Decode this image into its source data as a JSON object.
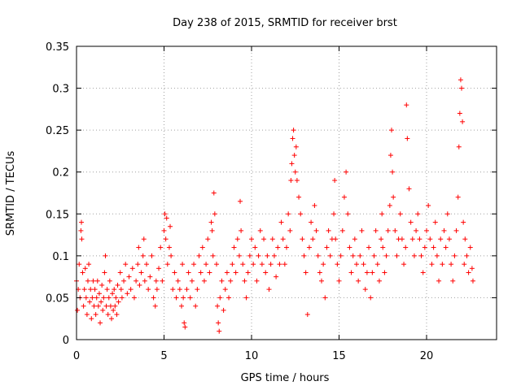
{
  "chart_data": {
    "type": "scatter",
    "title": "Day 238 of 2015, SRMTID for receiver brst",
    "xlabel": "GPS time / hours",
    "ylabel": "SRMTID / TECUs",
    "xlim": [
      0,
      24
    ],
    "ylim": [
      0,
      0.35
    ],
    "x_ticks": [
      0,
      5,
      10,
      15,
      20
    ],
    "x_tick_labels": [
      "0",
      "5",
      "10",
      "15",
      "20"
    ],
    "y_ticks": [
      0,
      0.05,
      0.1,
      0.15,
      0.2,
      0.25,
      0.3,
      0.35
    ],
    "y_tick_labels": [
      "0",
      "0.05",
      "0.1",
      "0.15",
      "0.2",
      "0.25",
      "0.3",
      "0.35"
    ],
    "grid": true,
    "marker": "+",
    "color": "#ff0000",
    "series": [
      {
        "name": "SRMTID",
        "points": [
          [
            0.0,
            0.07
          ],
          [
            0.05,
            0.035
          ],
          [
            0.1,
            0.06
          ],
          [
            0.15,
            0.09
          ],
          [
            0.2,
            0.05
          ],
          [
            0.25,
            0.13
          ],
          [
            0.28,
            0.14
          ],
          [
            0.3,
            0.12
          ],
          [
            0.35,
            0.08
          ],
          [
            0.4,
            0.04
          ],
          [
            0.45,
            0.06
          ],
          [
            0.5,
            0.085
          ],
          [
            0.55,
            0.05
          ],
          [
            0.6,
            0.03
          ],
          [
            0.65,
            0.07
          ],
          [
            0.7,
            0.09
          ],
          [
            0.75,
            0.045
          ],
          [
            0.8,
            0.06
          ],
          [
            0.85,
            0.025
          ],
          [
            0.9,
            0.05
          ],
          [
            0.95,
            0.07
          ],
          [
            1.0,
            0.04
          ],
          [
            1.05,
            0.06
          ],
          [
            1.1,
            0.03
          ],
          [
            1.15,
            0.05
          ],
          [
            1.2,
            0.07
          ],
          [
            1.25,
            0.04
          ],
          [
            1.3,
            0.055
          ],
          [
            1.35,
            0.02
          ],
          [
            1.4,
            0.045
          ],
          [
            1.45,
            0.065
          ],
          [
            1.5,
            0.035
          ],
          [
            1.55,
            0.05
          ],
          [
            1.6,
            0.08
          ],
          [
            1.65,
            0.1
          ],
          [
            1.7,
            0.04
          ],
          [
            1.75,
            0.06
          ],
          [
            1.8,
            0.03
          ],
          [
            1.85,
            0.05
          ],
          [
            1.9,
            0.07
          ],
          [
            1.95,
            0.04
          ],
          [
            2.0,
            0.025
          ],
          [
            2.05,
            0.055
          ],
          [
            2.1,
            0.035
          ],
          [
            2.15,
            0.06
          ],
          [
            2.2,
            0.04
          ],
          [
            2.25,
            0.05
          ],
          [
            2.3,
            0.03
          ],
          [
            2.35,
            0.065
          ],
          [
            2.4,
            0.045
          ],
          [
            2.5,
            0.08
          ],
          [
            2.55,
            0.06
          ],
          [
            2.6,
            0.05
          ],
          [
            2.7,
            0.07
          ],
          [
            2.8,
            0.09
          ],
          [
            2.9,
            0.055
          ],
          [
            3.0,
            0.075
          ],
          [
            3.1,
            0.06
          ],
          [
            3.2,
            0.085
          ],
          [
            3.3,
            0.05
          ],
          [
            3.4,
            0.07
          ],
          [
            3.5,
            0.09
          ],
          [
            3.55,
            0.11
          ],
          [
            3.6,
            0.065
          ],
          [
            3.7,
            0.08
          ],
          [
            3.8,
            0.1
          ],
          [
            3.85,
            0.12
          ],
          [
            3.9,
            0.07
          ],
          [
            4.0,
            0.09
          ],
          [
            4.1,
            0.06
          ],
          [
            4.2,
            0.075
          ],
          [
            4.3,
            0.1
          ],
          [
            4.4,
            0.05
          ],
          [
            4.5,
            0.04
          ],
          [
            4.55,
            0.07
          ],
          [
            4.6,
            0.06
          ],
          [
            4.7,
            0.085
          ],
          [
            4.8,
            0.11
          ],
          [
            4.9,
            0.07
          ],
          [
            5.0,
            0.13
          ],
          [
            5.05,
            0.15
          ],
          [
            5.1,
            0.12
          ],
          [
            5.15,
            0.145
          ],
          [
            5.2,
            0.09
          ],
          [
            5.3,
            0.11
          ],
          [
            5.35,
            0.135
          ],
          [
            5.4,
            0.1
          ],
          [
            5.5,
            0.06
          ],
          [
            5.6,
            0.08
          ],
          [
            5.7,
            0.05
          ],
          [
            5.8,
            0.07
          ],
          [
            5.9,
            0.06
          ],
          [
            6.0,
            0.04
          ],
          [
            6.05,
            0.09
          ],
          [
            6.1,
            0.05
          ],
          [
            6.15,
            0.02
          ],
          [
            6.2,
            0.015
          ],
          [
            6.3,
            0.06
          ],
          [
            6.4,
            0.08
          ],
          [
            6.5,
            0.05
          ],
          [
            6.6,
            0.07
          ],
          [
            6.7,
            0.09
          ],
          [
            6.8,
            0.04
          ],
          [
            6.9,
            0.06
          ],
          [
            7.0,
            0.1
          ],
          [
            7.1,
            0.08
          ],
          [
            7.2,
            0.11
          ],
          [
            7.3,
            0.07
          ],
          [
            7.4,
            0.09
          ],
          [
            7.5,
            0.12
          ],
          [
            7.6,
            0.08
          ],
          [
            7.7,
            0.14
          ],
          [
            7.75,
            0.13
          ],
          [
            7.8,
            0.1
          ],
          [
            7.85,
            0.175
          ],
          [
            7.9,
            0.15
          ],
          [
            8.0,
            0.09
          ],
          [
            8.05,
            0.04
          ],
          [
            8.1,
            0.02
          ],
          [
            8.15,
            0.01
          ],
          [
            8.2,
            0.05
          ],
          [
            8.3,
            0.07
          ],
          [
            8.4,
            0.035
          ],
          [
            8.5,
            0.06
          ],
          [
            8.6,
            0.08
          ],
          [
            8.7,
            0.05
          ],
          [
            8.8,
            0.07
          ],
          [
            8.9,
            0.09
          ],
          [
            9.0,
            0.11
          ],
          [
            9.1,
            0.08
          ],
          [
            9.2,
            0.12
          ],
          [
            9.3,
            0.1
          ],
          [
            9.35,
            0.165
          ],
          [
            9.4,
            0.13
          ],
          [
            9.5,
            0.09
          ],
          [
            9.6,
            0.07
          ],
          [
            9.7,
            0.05
          ],
          [
            9.8,
            0.08
          ],
          [
            9.9,
            0.1
          ],
          [
            10.0,
            0.12
          ],
          [
            10.1,
            0.09
          ],
          [
            10.2,
            0.11
          ],
          [
            10.3,
            0.07
          ],
          [
            10.4,
            0.1
          ],
          [
            10.5,
            0.13
          ],
          [
            10.6,
            0.09
          ],
          [
            10.7,
            0.12
          ],
          [
            10.8,
            0.08
          ],
          [
            10.9,
            0.1
          ],
          [
            11.0,
            0.06
          ],
          [
            11.1,
            0.09
          ],
          [
            11.2,
            0.12
          ],
          [
            11.3,
            0.1
          ],
          [
            11.4,
            0.075
          ],
          [
            11.5,
            0.11
          ],
          [
            11.6,
            0.09
          ],
          [
            11.7,
            0.14
          ],
          [
            11.8,
            0.12
          ],
          [
            11.9,
            0.09
          ],
          [
            12.0,
            0.11
          ],
          [
            12.1,
            0.15
          ],
          [
            12.2,
            0.13
          ],
          [
            12.25,
            0.19
          ],
          [
            12.3,
            0.21
          ],
          [
            12.35,
            0.24
          ],
          [
            12.4,
            0.25
          ],
          [
            12.45,
            0.22
          ],
          [
            12.5,
            0.2
          ],
          [
            12.55,
            0.23
          ],
          [
            12.6,
            0.19
          ],
          [
            12.7,
            0.17
          ],
          [
            12.8,
            0.15
          ],
          [
            12.9,
            0.12
          ],
          [
            13.0,
            0.1
          ],
          [
            13.1,
            0.08
          ],
          [
            13.2,
            0.03
          ],
          [
            13.3,
            0.11
          ],
          [
            13.4,
            0.14
          ],
          [
            13.5,
            0.12
          ],
          [
            13.6,
            0.16
          ],
          [
            13.7,
            0.13
          ],
          [
            13.8,
            0.1
          ],
          [
            13.9,
            0.08
          ],
          [
            14.0,
            0.07
          ],
          [
            14.1,
            0.09
          ],
          [
            14.2,
            0.05
          ],
          [
            14.3,
            0.11
          ],
          [
            14.4,
            0.13
          ],
          [
            14.5,
            0.1
          ],
          [
            14.6,
            0.12
          ],
          [
            14.7,
            0.15
          ],
          [
            14.75,
            0.19
          ],
          [
            14.8,
            0.12
          ],
          [
            14.9,
            0.09
          ],
          [
            15.0,
            0.07
          ],
          [
            15.1,
            0.1
          ],
          [
            15.2,
            0.13
          ],
          [
            15.3,
            0.17
          ],
          [
            15.4,
            0.2
          ],
          [
            15.5,
            0.15
          ],
          [
            15.6,
            0.11
          ],
          [
            15.7,
            0.08
          ],
          [
            15.8,
            0.1
          ],
          [
            15.9,
            0.12
          ],
          [
            16.0,
            0.09
          ],
          [
            16.1,
            0.07
          ],
          [
            16.2,
            0.1
          ],
          [
            16.3,
            0.13
          ],
          [
            16.4,
            0.09
          ],
          [
            16.5,
            0.06
          ],
          [
            16.6,
            0.08
          ],
          [
            16.7,
            0.11
          ],
          [
            16.8,
            0.05
          ],
          [
            16.9,
            0.08
          ],
          [
            17.0,
            0.1
          ],
          [
            17.1,
            0.13
          ],
          [
            17.2,
            0.09
          ],
          [
            17.3,
            0.07
          ],
          [
            17.4,
            0.12
          ],
          [
            17.45,
            0.15
          ],
          [
            17.5,
            0.11
          ],
          [
            17.6,
            0.08
          ],
          [
            17.7,
            0.1
          ],
          [
            17.8,
            0.13
          ],
          [
            17.9,
            0.16
          ],
          [
            17.95,
            0.22
          ],
          [
            18.0,
            0.25
          ],
          [
            18.05,
            0.2
          ],
          [
            18.1,
            0.17
          ],
          [
            18.2,
            0.13
          ],
          [
            18.3,
            0.1
          ],
          [
            18.4,
            0.12
          ],
          [
            18.5,
            0.15
          ],
          [
            18.6,
            0.12
          ],
          [
            18.7,
            0.09
          ],
          [
            18.8,
            0.11
          ],
          [
            18.85,
            0.28
          ],
          [
            18.9,
            0.24
          ],
          [
            19.0,
            0.18
          ],
          [
            19.1,
            0.14
          ],
          [
            19.2,
            0.12
          ],
          [
            19.3,
            0.1
          ],
          [
            19.4,
            0.13
          ],
          [
            19.5,
            0.15
          ],
          [
            19.6,
            0.12
          ],
          [
            19.7,
            0.1
          ],
          [
            19.8,
            0.08
          ],
          [
            19.9,
            0.11
          ],
          [
            20.0,
            0.13
          ],
          [
            20.1,
            0.16
          ],
          [
            20.2,
            0.12
          ],
          [
            20.3,
            0.09
          ],
          [
            20.4,
            0.11
          ],
          [
            20.5,
            0.14
          ],
          [
            20.6,
            0.1
          ],
          [
            20.7,
            0.07
          ],
          [
            20.8,
            0.12
          ],
          [
            20.9,
            0.09
          ],
          [
            21.0,
            0.13
          ],
          [
            21.1,
            0.11
          ],
          [
            21.2,
            0.15
          ],
          [
            21.3,
            0.12
          ],
          [
            21.4,
            0.09
          ],
          [
            21.5,
            0.07
          ],
          [
            21.6,
            0.1
          ],
          [
            21.7,
            0.13
          ],
          [
            21.8,
            0.17
          ],
          [
            21.85,
            0.23
          ],
          [
            21.9,
            0.27
          ],
          [
            21.95,
            0.31
          ],
          [
            22.0,
            0.3
          ],
          [
            22.05,
            0.26
          ],
          [
            22.1,
            0.14
          ],
          [
            22.15,
            0.09
          ],
          [
            22.2,
            0.12
          ],
          [
            22.3,
            0.1
          ],
          [
            22.4,
            0.08
          ],
          [
            22.5,
            0.11
          ],
          [
            22.6,
            0.085
          ],
          [
            22.65,
            0.07
          ]
        ]
      }
    ]
  }
}
